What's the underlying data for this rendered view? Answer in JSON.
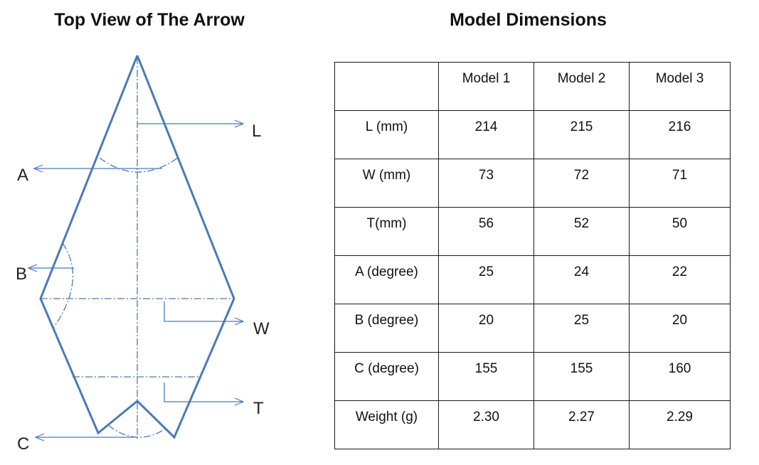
{
  "diagram": {
    "title": "Top View of The Arrow",
    "labels": {
      "L": "L",
      "A": "A",
      "B": "B",
      "W": "W",
      "T": "T",
      "C": "C"
    },
    "colors": {
      "outline": "#4a7ab8",
      "dashed": "#4a7ab8"
    }
  },
  "table": {
    "title": "Model Dimensions",
    "corner": "",
    "columns": [
      "Model 1",
      "Model 2",
      "Model  3"
    ],
    "rows": [
      {
        "label": "L (mm)",
        "values": [
          "214",
          "215",
          "216"
        ]
      },
      {
        "label": "W (mm)",
        "values": [
          "73",
          "72",
          "71"
        ]
      },
      {
        "label": "T(mm)",
        "values": [
          "56",
          "52",
          "50"
        ]
      },
      {
        "label": "A (degree)",
        "values": [
          "25",
          "24",
          "22"
        ]
      },
      {
        "label": "B (degree)",
        "values": [
          "20",
          "25",
          "20"
        ]
      },
      {
        "label": "C (degree)",
        "values": [
          "155",
          "155",
          "160"
        ]
      },
      {
        "label": "Weight (g)",
        "values": [
          "2.30",
          "2.27",
          "2.29"
        ]
      }
    ]
  }
}
